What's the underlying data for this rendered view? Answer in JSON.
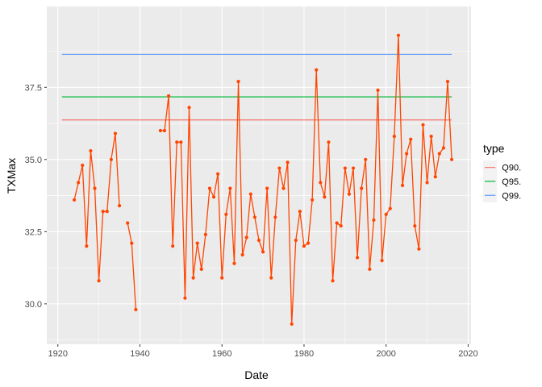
{
  "chart_data": {
    "type": "line",
    "xlabel": "Date",
    "ylabel": "TXMax",
    "xlim": [
      1917.3,
      2020.7
    ],
    "ylim": [
      28.6,
      40.3
    ],
    "x_ticks": [
      1920,
      1940,
      1960,
      1980,
      2000,
      2020
    ],
    "x_tick_labels": [
      "1920",
      "1940",
      "1960",
      "1980",
      "2000",
      "2020"
    ],
    "y_ticks": [
      30.0,
      32.5,
      35.0,
      37.5
    ],
    "y_tick_labels": [
      "30.0",
      "32.5",
      "35.0",
      "37.5"
    ],
    "grid": true,
    "legend": {
      "title": "type",
      "placement": "right",
      "entries": [
        {
          "label": "Q90.",
          "color": "#F8766D"
        },
        {
          "label": "Q95.",
          "color": "#00BA38"
        },
        {
          "label": "Q99.",
          "color": "#619CFF"
        }
      ]
    },
    "hlines": [
      {
        "name": "Q90.",
        "y": 36.37,
        "x_range": [
          1921,
          2016
        ],
        "color": "#F8766D"
      },
      {
        "name": "Q95.",
        "y": 37.17,
        "x_range": [
          1921,
          2016
        ],
        "color": "#00BA38"
      },
      {
        "name": "Q99.",
        "y": 38.64,
        "x_range": [
          1921,
          2016
        ],
        "color": "#619CFF"
      }
    ],
    "series": [
      {
        "color": "#FF4500",
        "segments": [
          [
            [
              1924,
              33.6
            ],
            [
              1925,
              34.2
            ],
            [
              1926,
              34.8
            ],
            [
              1927,
              32.0
            ],
            [
              1928,
              35.3
            ],
            [
              1929,
              34.0
            ],
            [
              1930,
              30.8
            ],
            [
              1931,
              33.2
            ],
            [
              1932,
              33.2
            ],
            [
              1933,
              35.0
            ],
            [
              1934,
              35.9
            ],
            [
              1935,
              33.4
            ]
          ],
          [
            [
              1937,
              32.8
            ],
            [
              1938,
              32.1
            ],
            [
              1939,
              29.8
            ]
          ],
          [
            [
              1945,
              36.0
            ],
            [
              1946,
              36.0
            ],
            [
              1947,
              37.2
            ],
            [
              1948,
              32.0
            ],
            [
              1949,
              35.6
            ],
            [
              1950,
              35.6
            ],
            [
              1951,
              30.2
            ],
            [
              1952,
              36.8
            ],
            [
              1953,
              30.9
            ],
            [
              1954,
              32.1
            ],
            [
              1955,
              31.2
            ],
            [
              1956,
              32.4
            ],
            [
              1957,
              34.0
            ],
            [
              1958,
              33.7
            ],
            [
              1959,
              34.5
            ],
            [
              1960,
              30.9
            ],
            [
              1961,
              33.1
            ],
            [
              1962,
              34.0
            ],
            [
              1963,
              31.4
            ],
            [
              1964,
              37.7
            ],
            [
              1965,
              31.7
            ],
            [
              1966,
              32.3
            ],
            [
              1967,
              33.8
            ],
            [
              1968,
              33.0
            ],
            [
              1969,
              32.2
            ],
            [
              1970,
              31.8
            ],
            [
              1971,
              34.0
            ],
            [
              1972,
              30.9
            ],
            [
              1973,
              33.0
            ],
            [
              1974,
              34.7
            ],
            [
              1975,
              34.0
            ],
            [
              1976,
              34.9
            ],
            [
              1977,
              29.3
            ],
            [
              1978,
              32.2
            ],
            [
              1979,
              33.2
            ],
            [
              1980,
              32.0
            ],
            [
              1981,
              32.1
            ],
            [
              1982,
              33.6
            ],
            [
              1983,
              38.1
            ],
            [
              1984,
              34.2
            ],
            [
              1985,
              33.7
            ],
            [
              1986,
              35.6
            ],
            [
              1987,
              30.8
            ],
            [
              1988,
              32.8
            ],
            [
              1989,
              32.7
            ],
            [
              1990,
              34.7
            ],
            [
              1991,
              33.8
            ],
            [
              1992,
              34.7
            ],
            [
              1993,
              31.6
            ],
            [
              1994,
              34.0
            ],
            [
              1995,
              35.0
            ],
            [
              1996,
              31.2
            ],
            [
              1997,
              32.9
            ],
            [
              1998,
              37.4
            ],
            [
              1999,
              31.5
            ],
            [
              2000,
              33.1
            ],
            [
              2001,
              33.3
            ],
            [
              2002,
              35.8
            ],
            [
              2003,
              39.3
            ],
            [
              2004,
              34.1
            ],
            [
              2005,
              35.2
            ],
            [
              2006,
              35.7
            ],
            [
              2007,
              32.7
            ],
            [
              2008,
              31.9
            ],
            [
              2009,
              36.2
            ],
            [
              2010,
              34.2
            ],
            [
              2011,
              35.8
            ],
            [
              2012,
              34.4
            ],
            [
              2013,
              35.2
            ],
            [
              2014,
              35.4
            ],
            [
              2015,
              37.7
            ],
            [
              2016,
              35.0
            ]
          ]
        ]
      }
    ]
  }
}
